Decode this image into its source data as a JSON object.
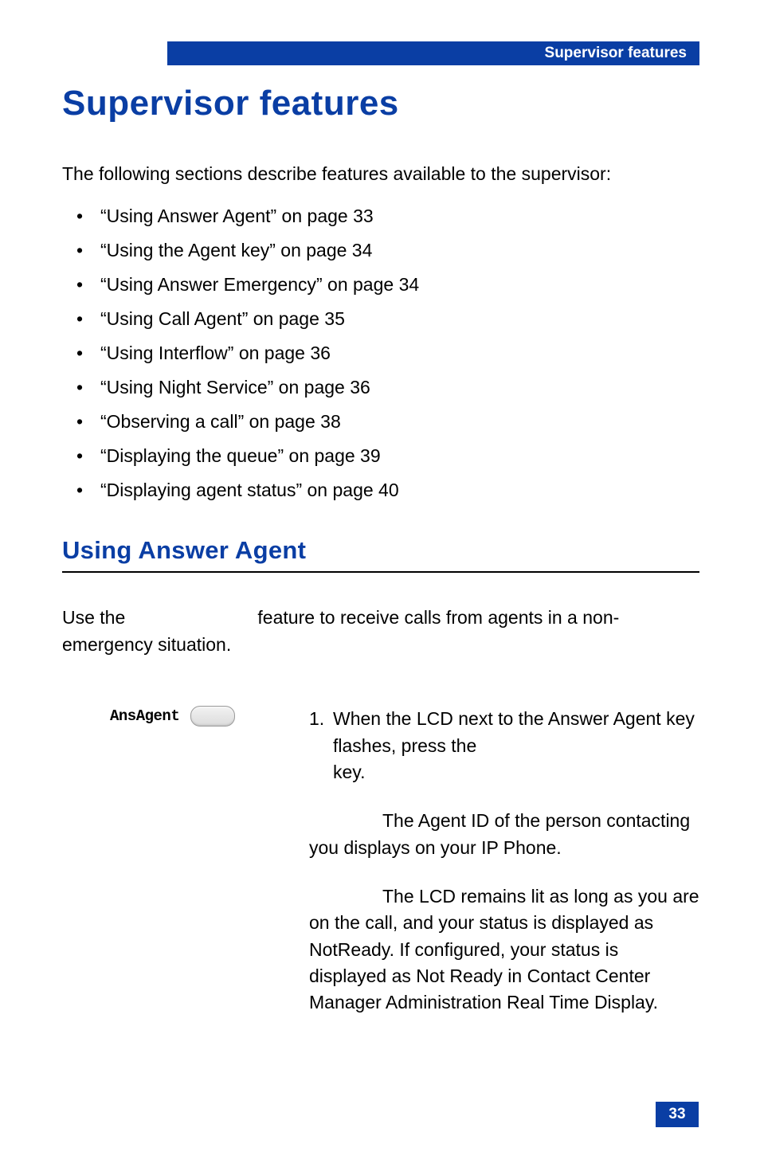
{
  "header": {
    "label": "Supervisor features"
  },
  "title": "Supervisor features",
  "intro": "The following sections describe features available to the supervisor:",
  "toc": [
    "“Using Answer Agent” on page 33",
    "“Using the Agent key” on page 34",
    "“Using Answer Emergency” on page 34",
    "“Using Call Agent” on page 35",
    "“Using Interflow” on page 36",
    "“Using Night Service” on page 36",
    "“Observing a call” on page 38",
    "“Displaying the queue” on page 39",
    "“Displaying agent status” on page 40"
  ],
  "section": {
    "heading": "Using Answer Agent",
    "intro_line1": "Use the",
    "intro_line2": "feature to receive calls from agents in a non-",
    "intro_line3": "emergency situation.",
    "button_label": "AnsAgent",
    "step_number": "1.",
    "step_text_a": "When the LCD next to the Answer Agent key flashes, press the",
    "step_text_b": "key.",
    "note1": "The Agent ID of the person contacting you displays on your IP Phone.",
    "note2": "The LCD remains lit as long as you are on the call, and your status is displayed as NotReady. If configured, your status is displayed as Not Ready in Contact Center Manager Administration Real Time Display."
  },
  "page_number": "33",
  "colors": {
    "brand": "#0a3ea4",
    "text": "#000000",
    "bg": "#ffffff"
  }
}
